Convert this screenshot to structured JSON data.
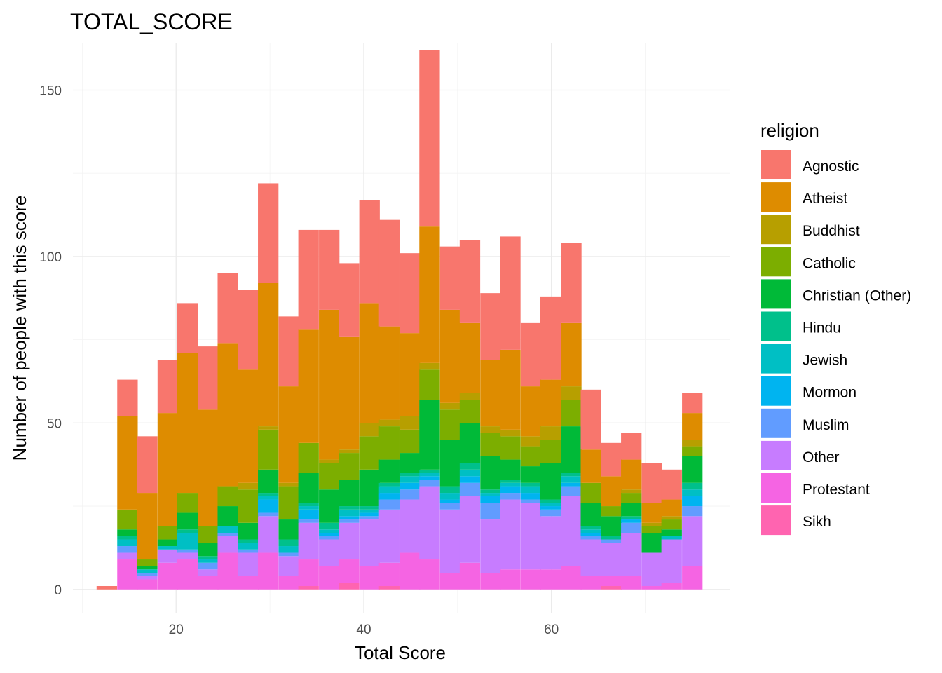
{
  "chart_data": {
    "type": "bar",
    "stacked": true,
    "title": "TOTAL_SCORE",
    "xlabel": "Total Score",
    "ylabel": "Number of people with this score",
    "xlim": [
      9,
      79
    ],
    "ylim": [
      -7,
      164
    ],
    "xticks": [
      20,
      40,
      60
    ],
    "yticks": [
      0,
      50,
      100,
      150
    ],
    "grid": true,
    "legend": {
      "title": "religion",
      "position": "right"
    },
    "bin_width": 2.15,
    "x": [
      12.6,
      14.8,
      16.9,
      19.1,
      21.2,
      23.4,
      25.5,
      27.7,
      29.8,
      32.0,
      34.1,
      36.3,
      38.4,
      40.6,
      42.7,
      44.9,
      47.0,
      49.2,
      51.3,
      53.5,
      55.6,
      57.8,
      59.9,
      62.1,
      64.2,
      66.4,
      68.5,
      70.7,
      72.8,
      75.0
    ],
    "series": [
      {
        "name": "Agnostic",
        "color": "#F8766D",
        "values": [
          1,
          11,
          17,
          16,
          15,
          19,
          21,
          24,
          30,
          21,
          30,
          24,
          22,
          31,
          32,
          24,
          53,
          19,
          25,
          20,
          34,
          19,
          25,
          24,
          18,
          10,
          8,
          12,
          9,
          6
        ]
      },
      {
        "name": "Atheist",
        "color": "#DE8C00",
        "values": [
          0,
          28,
          20,
          34,
          42,
          35,
          43,
          34,
          43,
          29,
          34,
          45,
          34,
          36,
          28,
          25,
          41,
          28,
          21,
          20,
          24,
          15,
          14,
          19,
          10,
          9,
          9,
          6,
          5,
          8
        ]
      },
      {
        "name": "Buddhist",
        "color": "#B79F00",
        "values": [
          0,
          0,
          0,
          0,
          0,
          0,
          0,
          2,
          1,
          1,
          0,
          1,
          1,
          4,
          2,
          4,
          2,
          2,
          2,
          2,
          2,
          3,
          4,
          4,
          0,
          0,
          1,
          1,
          1,
          2
        ]
      },
      {
        "name": "Catholic",
        "color": "#7CAE00",
        "values": [
          0,
          6,
          2,
          4,
          6,
          5,
          6,
          10,
          12,
          10,
          9,
          8,
          8,
          10,
          10,
          7,
          9,
          9,
          7,
          7,
          7,
          6,
          7,
          8,
          6,
          3,
          3,
          2,
          3,
          3
        ]
      },
      {
        "name": "Christian (Other)",
        "color": "#00BA38",
        "values": [
          0,
          2,
          1,
          2,
          5,
          4,
          6,
          5,
          7,
          6,
          9,
          10,
          8,
          11,
          7,
          6,
          21,
          14,
          12,
          10,
          6,
          5,
          11,
          14,
          7,
          6,
          4,
          6,
          2,
          8
        ]
      },
      {
        "name": "Hindu",
        "color": "#00C08B",
        "values": [
          0,
          1,
          0,
          0,
          1,
          1,
          0,
          1,
          1,
          2,
          1,
          2,
          1,
          1,
          1,
          1,
          1,
          2,
          2,
          1,
          1,
          1,
          1,
          1,
          1,
          1,
          1,
          0,
          0,
          2
        ]
      },
      {
        "name": "Jewish",
        "color": "#00BFC4",
        "values": [
          0,
          2,
          1,
          1,
          5,
          1,
          2,
          2,
          1,
          2,
          1,
          1,
          2,
          1,
          2,
          2,
          1,
          2,
          2,
          1,
          1,
          2,
          1,
          2,
          1,
          0,
          0,
          0,
          1,
          2
        ]
      },
      {
        "name": "Mormon",
        "color": "#00B4F0",
        "values": [
          0,
          0,
          0,
          0,
          0,
          0,
          0,
          0,
          4,
          0,
          3,
          1,
          1,
          1,
          2,
          2,
          1,
          1,
          2,
          2,
          2,
          2,
          1,
          1,
          1,
          0,
          1,
          0,
          0,
          3
        ]
      },
      {
        "name": "Muslim",
        "color": "#619CFF",
        "values": [
          0,
          2,
          1,
          0,
          1,
          2,
          1,
          1,
          1,
          1,
          1,
          1,
          1,
          1,
          3,
          3,
          2,
          2,
          4,
          5,
          2,
          1,
          2,
          3,
          1,
          1,
          3,
          0,
          0,
          3
        ]
      },
      {
        "name": "Other",
        "color": "#C77CFF",
        "values": [
          0,
          2,
          1,
          4,
          2,
          2,
          5,
          7,
          11,
          6,
          11,
          8,
          11,
          14,
          16,
          16,
          22,
          19,
          20,
          16,
          21,
          20,
          16,
          21,
          11,
          10,
          13,
          10,
          13,
          15
        ]
      },
      {
        "name": "Protestant",
        "color": "#F564E3",
        "values": [
          0,
          9,
          3,
          8,
          9,
          4,
          11,
          4,
          11,
          4,
          8,
          7,
          7,
          7,
          7,
          11,
          9,
          5,
          8,
          5,
          6,
          6,
          6,
          7,
          4,
          3,
          4,
          1,
          2,
          7
        ]
      },
      {
        "name": "Sikh",
        "color": "#FF64B0",
        "values": [
          0,
          0,
          0,
          0,
          0,
          0,
          0,
          0,
          0,
          0,
          1,
          0,
          2,
          0,
          1,
          0,
          0,
          0,
          0,
          0,
          0,
          0,
          0,
          0,
          0,
          1,
          0,
          0,
          0,
          0
        ]
      }
    ]
  }
}
